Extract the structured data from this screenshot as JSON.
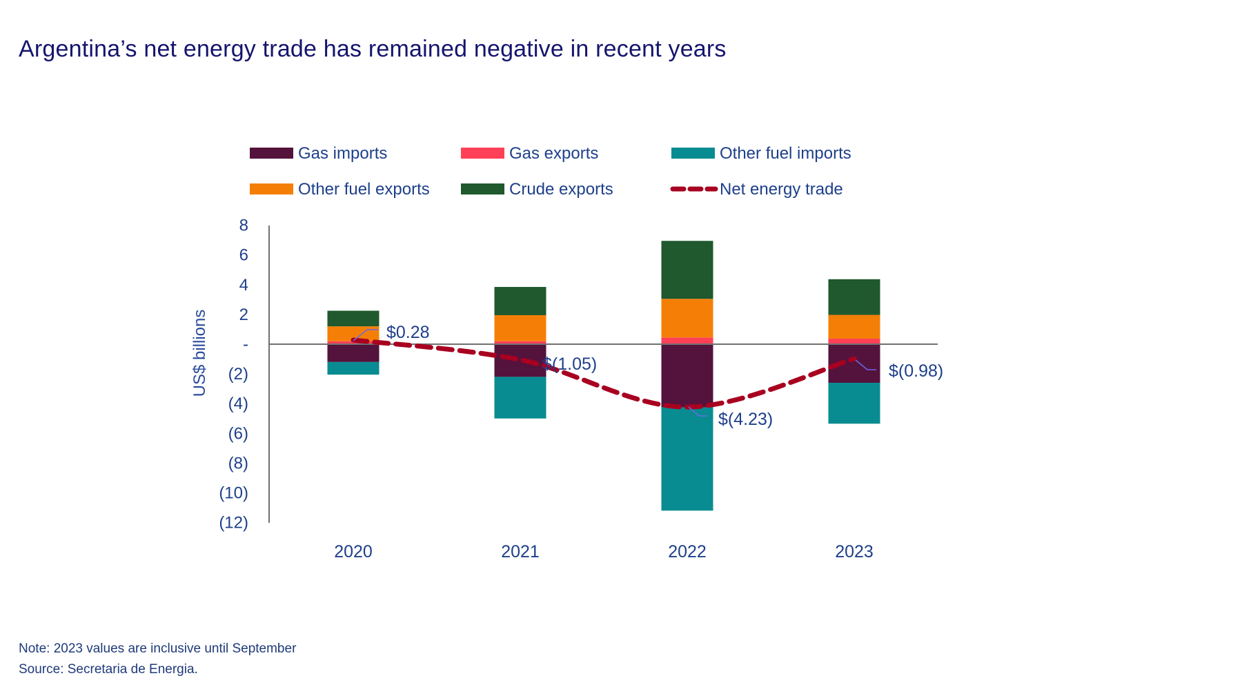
{
  "title": "Argentina’s net energy trade has remained negative in recent years",
  "footer": {
    "note": "Note:  2023 values are inclusive until September",
    "source": "Source: Secretaria de Energia."
  },
  "chart_data": {
    "type": "bar",
    "subtype": "stacked bar with line overlay",
    "title": "",
    "xlabel": "",
    "ylabel": "US$ billions",
    "ylim": [
      -12,
      8
    ],
    "yticks": [
      8,
      6,
      4,
      2,
      0,
      -2,
      -4,
      -6,
      -8,
      -10,
      -12
    ],
    "ytick_labels": [
      "8",
      "6",
      "4",
      "2",
      "-",
      "(2)",
      "(4)",
      "(6)",
      "(8)",
      "(10)",
      "(12)"
    ],
    "grid": false,
    "legend_position": "top",
    "categories": [
      "2020",
      "2021",
      "2022",
      "2023"
    ],
    "series": [
      {
        "name": "Gas imports",
        "kind": "bar",
        "color": "#53133c",
        "values": [
          -1.2,
          -2.2,
          -4.25,
          -2.6
        ]
      },
      {
        "name": "Gas exports",
        "kind": "bar",
        "color": "#ff4056",
        "values": [
          0.2,
          0.2,
          0.45,
          0.37
        ]
      },
      {
        "name": "Other fuel imports",
        "kind": "bar",
        "color": "#088c91",
        "values": [
          -0.85,
          -2.8,
          -6.95,
          -2.75
        ]
      },
      {
        "name": "Other fuel exports",
        "kind": "bar",
        "color": "#f57f06",
        "values": [
          1.0,
          1.75,
          2.6,
          1.6
        ]
      },
      {
        "name": "Crude exports",
        "kind": "bar",
        "color": "#1f592d",
        "values": [
          1.05,
          1.9,
          3.9,
          2.4
        ]
      },
      {
        "name": "Net energy trade",
        "kind": "line",
        "style": "dashed",
        "color": "#a80020",
        "values": [
          0.28,
          -1.05,
          -4.23,
          -0.98
        ]
      }
    ],
    "data_labels": [
      "$0.28",
      "$(1.05)",
      "$(4.23)",
      "$(0.98)"
    ]
  }
}
